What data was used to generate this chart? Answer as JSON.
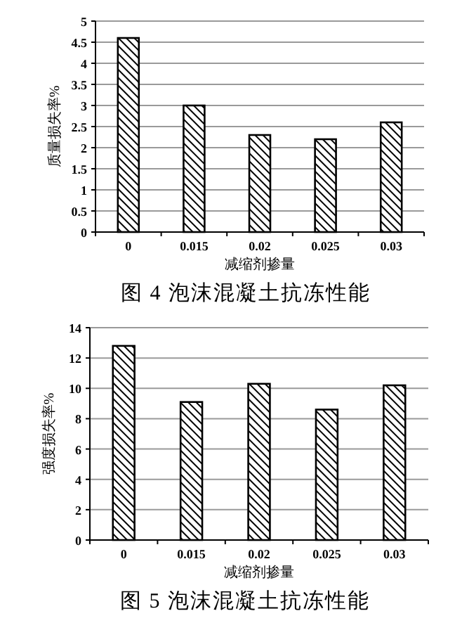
{
  "chart_data": [
    {
      "type": "bar",
      "title": "图 4 泡沫混凝土抗冻性能",
      "xlabel": "减缩剂掺量",
      "ylabel": "质量损失率%",
      "categories": [
        "0",
        "0.015",
        "0.02",
        "0.025",
        "0.03"
      ],
      "series": [
        {
          "color": "#000000",
          "values": [
            4.6,
            3.0,
            2.3,
            2.2,
            2.6
          ]
        }
      ],
      "ylim": [
        0,
        5
      ],
      "yticks": [
        0,
        0.5,
        1,
        1.5,
        2,
        2.5,
        3,
        3.5,
        4,
        4.5,
        5
      ],
      "grid": "y"
    },
    {
      "type": "bar",
      "title": "图 5 泡沫混凝土抗冻性能",
      "xlabel": "减缩剂掺量",
      "ylabel": "强度损失率%",
      "categories": [
        "0",
        "0.015",
        "0.02",
        "0.025",
        "0.03"
      ],
      "series": [
        {
          "color": "#000000",
          "values": [
            12.8,
            9.1,
            10.3,
            8.6,
            10.2
          ]
        }
      ],
      "ylim": [
        0,
        14
      ],
      "yticks": [
        0,
        2,
        4,
        6,
        8,
        10,
        12,
        14
      ],
      "grid": "y"
    }
  ]
}
